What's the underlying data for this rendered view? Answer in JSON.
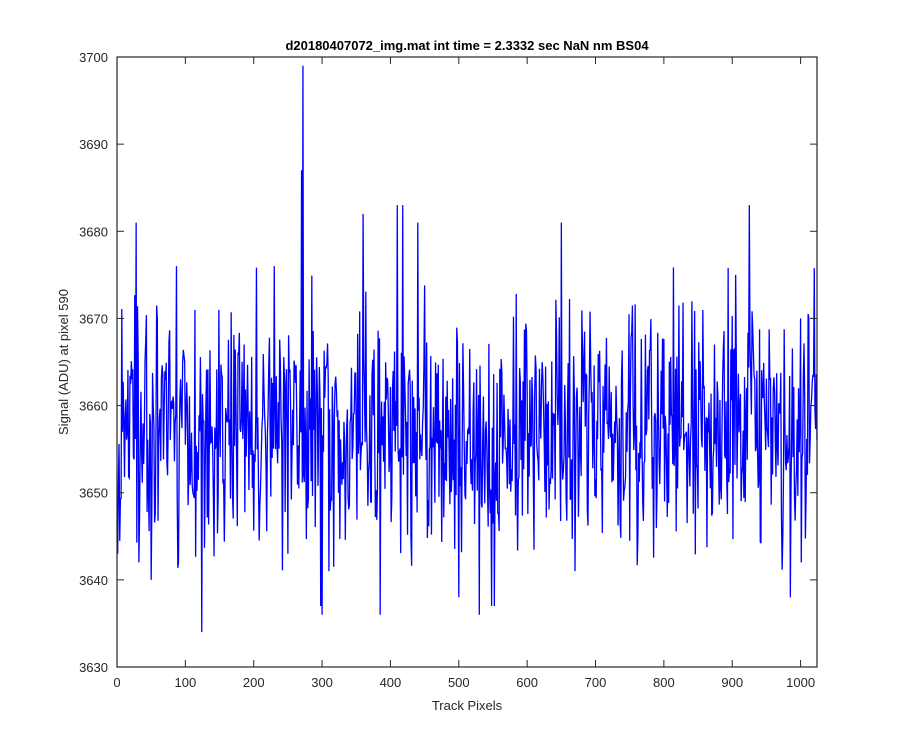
{
  "chart_data": {
    "type": "line",
    "title": "d20180407072_img.mat int time = 2.3332 sec  NaN nm BS04",
    "xlabel": "Track Pixels",
    "ylabel": "Signal (ADU) at pixel 590",
    "xlim": [
      0,
      1024
    ],
    "ylim": [
      3630,
      3700
    ],
    "xticks": [
      0,
      100,
      200,
      300,
      400,
      500,
      600,
      700,
      800,
      900,
      1000
    ],
    "yticks": [
      3630,
      3640,
      3650,
      3660,
      3670,
      3680,
      3690,
      3700
    ],
    "grid": false,
    "legend": "none",
    "series": [
      {
        "color": "#0000ff",
        "x_start": 1,
        "x_step": 1,
        "mean": 3657,
        "std": 7,
        "notable_points": [
          {
            "x": 1,
            "y": 3643
          },
          {
            "x": 28,
            "y": 3681
          },
          {
            "x": 32,
            "y": 3642
          },
          {
            "x": 50,
            "y": 3640
          },
          {
            "x": 87,
            "y": 3676
          },
          {
            "x": 124,
            "y": 3634
          },
          {
            "x": 230,
            "y": 3676
          },
          {
            "x": 250,
            "y": 3643
          },
          {
            "x": 270,
            "y": 3687
          },
          {
            "x": 272,
            "y": 3699
          },
          {
            "x": 298,
            "y": 3637
          },
          {
            "x": 300,
            "y": 3636
          },
          {
            "x": 310,
            "y": 3641
          },
          {
            "x": 360,
            "y": 3682
          },
          {
            "x": 385,
            "y": 3636
          },
          {
            "x": 410,
            "y": 3683
          },
          {
            "x": 418,
            "y": 3683
          },
          {
            "x": 440,
            "y": 3681
          },
          {
            "x": 500,
            "y": 3638
          },
          {
            "x": 530,
            "y": 3636
          },
          {
            "x": 548,
            "y": 3637
          },
          {
            "x": 552,
            "y": 3637
          },
          {
            "x": 650,
            "y": 3681
          },
          {
            "x": 670,
            "y": 3641
          },
          {
            "x": 905,
            "y": 3675
          },
          {
            "x": 925,
            "y": 3683
          },
          {
            "x": 985,
            "y": 3638
          },
          {
            "x": 1000,
            "y": 3670
          },
          {
            "x": 1024,
            "y": 3656
          }
        ]
      }
    ]
  }
}
